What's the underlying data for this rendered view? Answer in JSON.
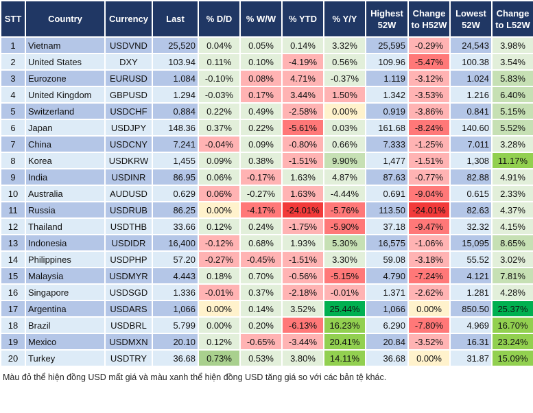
{
  "headers": [
    "STT",
    "Country",
    "Currency",
    "Last",
    "% D/D",
    "% W/W",
    "% YTD",
    "% Y/Y",
    "Highest 52W",
    "Change to H52W",
    "Lowest 52W",
    "Change to L52W"
  ],
  "palette": {
    "g1": "#e2efda",
    "g2": "#c6e0b4",
    "g3": "#92d050",
    "g4": "#00b050",
    "g5": "#a9d08e",
    "r1": "#ffb3b3",
    "r2": "#ff7878",
    "r3": "#f23a3a",
    "y": "#fff2cc",
    "header": "#203764",
    "row_odd": "#b4c6e7",
    "row_even": "#ddebf7"
  },
  "rows": [
    {
      "stt": "1",
      "country": "Vietnam",
      "currency": "USDVND",
      "last": "25,520",
      "dd": "0.04%",
      "ww": "0.05%",
      "ytd": "0.14%",
      "yy": "3.32%",
      "high": "25,595",
      "ch_h": "-0.29%",
      "low": "24,543",
      "ch_l": "3.98%",
      "tones": [
        "g1",
        "g1",
        "g1",
        "g1",
        "r1",
        "g1"
      ]
    },
    {
      "stt": "2",
      "country": "United States",
      "currency": "DXY",
      "last": "103.94",
      "dd": "0.11%",
      "ww": "0.10%",
      "ytd": "-4.19%",
      "yy": "0.56%",
      "high": "109.96",
      "ch_h": "-5.47%",
      "low": "100.38",
      "ch_l": "3.54%",
      "tones": [
        "g1",
        "g1",
        "r1",
        "g1",
        "r2",
        "g1"
      ]
    },
    {
      "stt": "3",
      "country": "Eurozone",
      "currency": "EURUSD",
      "last": "1.084",
      "dd": "-0.10%",
      "ww": "0.08%",
      "ytd": "4.71%",
      "yy": "-0.37%",
      "high": "1.119",
      "ch_h": "-3.12%",
      "low": "1.024",
      "ch_l": "5.83%",
      "tones": [
        "g1",
        "r1",
        "r1",
        "g1",
        "r1",
        "g2"
      ]
    },
    {
      "stt": "4",
      "country": "United Kingdom",
      "currency": "GBPUSD",
      "last": "1.294",
      "dd": "-0.03%",
      "ww": "0.17%",
      "ytd": "3.44%",
      "yy": "1.50%",
      "high": "1.342",
      "ch_h": "-3.53%",
      "low": "1.216",
      "ch_l": "6.40%",
      "tones": [
        "g1",
        "r1",
        "r1",
        "r1",
        "r1",
        "g2"
      ]
    },
    {
      "stt": "5",
      "country": "Switzerland",
      "currency": "USDCHF",
      "last": "0.884",
      "dd": "0.22%",
      "ww": "0.49%",
      "ytd": "-2.58%",
      "yy": "0.00%",
      "high": "0.919",
      "ch_h": "-3.86%",
      "low": "0.841",
      "ch_l": "5.15%",
      "tones": [
        "g1",
        "g1",
        "r1",
        "y",
        "r1",
        "g2"
      ]
    },
    {
      "stt": "6",
      "country": "Japan",
      "currency": "USDJPY",
      "last": "148.36",
      "dd": "0.37%",
      "ww": "0.22%",
      "ytd": "-5.61%",
      "yy": "0.03%",
      "high": "161.68",
      "ch_h": "-8.24%",
      "low": "140.60",
      "ch_l": "5.52%",
      "tones": [
        "g1",
        "g1",
        "r2",
        "g1",
        "r2",
        "g2"
      ]
    },
    {
      "stt": "7",
      "country": "China",
      "currency": "USDCNY",
      "last": "7.241",
      "dd": "-0.04%",
      "ww": "0.09%",
      "ytd": "-0.80%",
      "yy": "0.66%",
      "high": "7.333",
      "ch_h": "-1.25%",
      "low": "7.011",
      "ch_l": "3.28%",
      "tones": [
        "r1",
        "g1",
        "r1",
        "g1",
        "r1",
        "g1"
      ]
    },
    {
      "stt": "8",
      "country": "Korea",
      "currency": "USDKRW",
      "last": "1,455",
      "dd": "0.09%",
      "ww": "0.38%",
      "ytd": "-1.51%",
      "yy": "9.90%",
      "high": "1,477",
      "ch_h": "-1.51%",
      "low": "1,308",
      "ch_l": "11.17%",
      "tones": [
        "g1",
        "g1",
        "r1",
        "g2",
        "r1",
        "g3"
      ]
    },
    {
      "stt": "9",
      "country": "India",
      "currency": "USDINR",
      "last": "86.95",
      "dd": "0.06%",
      "ww": "-0.17%",
      "ytd": "1.63%",
      "yy": "4.87%",
      "high": "87.63",
      "ch_h": "-0.77%",
      "low": "82.88",
      "ch_l": "4.91%",
      "tones": [
        "g1",
        "r1",
        "g1",
        "g1",
        "r1",
        "g1"
      ]
    },
    {
      "stt": "10",
      "country": "Australia",
      "currency": "AUDUSD",
      "last": "0.629",
      "dd": "0.06%",
      "ww": "-0.27%",
      "ytd": "1.63%",
      "yy": "-4.44%",
      "high": "0.691",
      "ch_h": "-9.04%",
      "low": "0.615",
      "ch_l": "2.33%",
      "tones": [
        "r1",
        "g1",
        "r1",
        "g1",
        "r2",
        "g1"
      ]
    },
    {
      "stt": "11",
      "country": "Russia",
      "currency": "USDRUB",
      "last": "86.25",
      "dd": "0.00%",
      "ww": "-4.17%",
      "ytd": "-24.01%",
      "yy": "-5.76%",
      "high": "113.50",
      "ch_h": "-24.01%",
      "low": "82.63",
      "ch_l": "4.37%",
      "tones": [
        "y",
        "r2",
        "r3",
        "r2",
        "r3",
        "g1"
      ]
    },
    {
      "stt": "12",
      "country": "Thailand",
      "currency": "USDTHB",
      "last": "33.66",
      "dd": "0.12%",
      "ww": "0.24%",
      "ytd": "-1.75%",
      "yy": "-5.90%",
      "high": "37.18",
      "ch_h": "-9.47%",
      "low": "32.32",
      "ch_l": "4.15%",
      "tones": [
        "g1",
        "g1",
        "r1",
        "r2",
        "r2",
        "g1"
      ]
    },
    {
      "stt": "13",
      "country": "Indonesia",
      "currency": "USDIDR",
      "last": "16,400",
      "dd": "-0.12%",
      "ww": "0.68%",
      "ytd": "1.93%",
      "yy": "5.30%",
      "high": "16,575",
      "ch_h": "-1.06%",
      "low": "15,095",
      "ch_l": "8.65%",
      "tones": [
        "r1",
        "g1",
        "g1",
        "g2",
        "r1",
        "g2"
      ]
    },
    {
      "stt": "14",
      "country": "Philippines",
      "currency": "USDPHP",
      "last": "57.20",
      "dd": "-0.27%",
      "ww": "-0.45%",
      "ytd": "-1.51%",
      "yy": "3.30%",
      "high": "59.08",
      "ch_h": "-3.18%",
      "low": "55.52",
      "ch_l": "3.02%",
      "tones": [
        "r1",
        "r1",
        "r1",
        "g1",
        "r1",
        "g1"
      ]
    },
    {
      "stt": "15",
      "country": "Malaysia",
      "currency": "USDMYR",
      "last": "4.443",
      "dd": "0.18%",
      "ww": "0.70%",
      "ytd": "-0.56%",
      "yy": "-5.15%",
      "high": "4.790",
      "ch_h": "-7.24%",
      "low": "4.121",
      "ch_l": "7.81%",
      "tones": [
        "g1",
        "g1",
        "r1",
        "r2",
        "r2",
        "g2"
      ]
    },
    {
      "stt": "16",
      "country": "Singapore",
      "currency": "USDSGD",
      "last": "1.336",
      "dd": "-0.01%",
      "ww": "0.37%",
      "ytd": "-2.18%",
      "yy": "-0.01%",
      "high": "1.371",
      "ch_h": "-2.62%",
      "low": "1.281",
      "ch_l": "4.28%",
      "tones": [
        "r1",
        "g1",
        "r1",
        "r1",
        "r1",
        "g1"
      ]
    },
    {
      "stt": "17",
      "country": "Argentina",
      "currency": "USDARS",
      "last": "1,066",
      "dd": "0.00%",
      "ww": "0.14%",
      "ytd": "3.52%",
      "yy": "25.44%",
      "high": "1,066",
      "ch_h": "0.00%",
      "low": "850.50",
      "ch_l": "25.37%",
      "tones": [
        "y",
        "g1",
        "g1",
        "g4",
        "y",
        "g4"
      ]
    },
    {
      "stt": "18",
      "country": "Brazil",
      "currency": "USDBRL",
      "last": "5.799",
      "dd": "0.00%",
      "ww": "0.20%",
      "ytd": "-6.13%",
      "yy": "16.23%",
      "high": "6.290",
      "ch_h": "-7.80%",
      "low": "4.969",
      "ch_l": "16.70%",
      "tones": [
        "g1",
        "g1",
        "r2",
        "g3",
        "r2",
        "g3"
      ]
    },
    {
      "stt": "19",
      "country": "Mexico",
      "currency": "USDMXN",
      "last": "20.10",
      "dd": "0.12%",
      "ww": "-0.65%",
      "ytd": "-3.44%",
      "yy": "20.41%",
      "high": "20.84",
      "ch_h": "-3.52%",
      "low": "16.31",
      "ch_l": "23.24%",
      "tones": [
        "g1",
        "r1",
        "r1",
        "g3",
        "r1",
        "g3"
      ]
    },
    {
      "stt": "20",
      "country": "Turkey",
      "currency": "USDTRY",
      "last": "36.68",
      "dd": "0.73%",
      "ww": "0.53%",
      "ytd": "3.80%",
      "yy": "14.11%",
      "high": "36.68",
      "ch_h": "0.00%",
      "low": "31.87",
      "ch_l": "15.09%",
      "tones": [
        "g5",
        "g1",
        "g1",
        "g3",
        "y",
        "g3"
      ]
    }
  ],
  "footnote": "Màu đỏ thể hiện đồng USD mất giá và màu xanh thể hiện đồng USD tăng giá so với các bản tệ khác."
}
